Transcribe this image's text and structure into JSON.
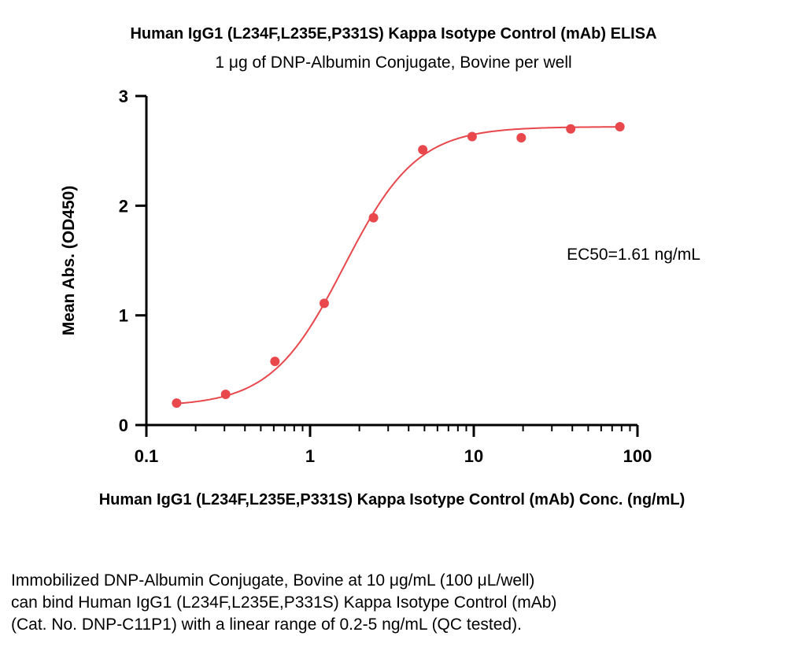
{
  "chart_data": {
    "type": "scatter",
    "title": "Human IgG1 (L234F,L235E,P331S) Kappa Isotype Control (mAb) ELISA",
    "subtitle": "1 μg of DNP-Albumin Conjugate, Bovine per well",
    "xlabel": "Human IgG1 (L234F,L235E,P331S) Kappa Isotype Control (mAb) Conc. (ng/mL)",
    "ylabel": "Mean Abs. (OD450)",
    "x_scale": "log",
    "xlim": [
      0.1,
      100
    ],
    "ylim": [
      0,
      3
    ],
    "x_ticks": [
      "0.1",
      "1",
      "10",
      "100"
    ],
    "y_ticks": [
      "0",
      "1",
      "2",
      "3"
    ],
    "grid": false,
    "annotation": "EC50=1.61 ng/mL",
    "series": [
      {
        "color": "#e8474c",
        "fit": "4PL",
        "x": [
          0.153,
          0.305,
          0.61,
          1.22,
          2.44,
          4.88,
          9.77,
          19.5,
          39.1,
          78.1
        ],
        "y": [
          0.2,
          0.28,
          0.58,
          1.11,
          1.89,
          2.51,
          2.63,
          2.62,
          2.7,
          2.72
        ]
      }
    ]
  },
  "caption": {
    "line1": "Immobilized DNP-Albumin Conjugate, Bovine at 10 μg/mL (100 μL/well)",
    "line2": "can bind Human IgG1 (L234F,L235E,P331S) Kappa Isotype Control (mAb)",
    "line3": "(Cat. No. DNP-C11P1) with a linear range of 0.2-5 ng/mL (QC tested)."
  }
}
